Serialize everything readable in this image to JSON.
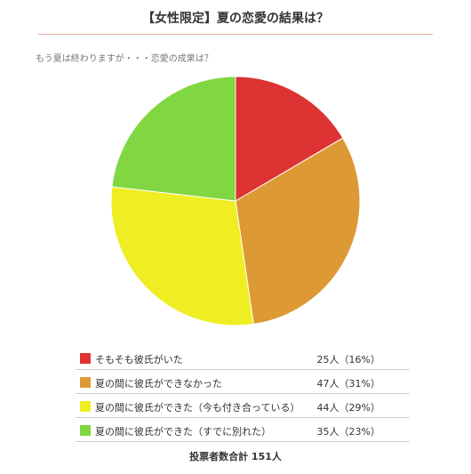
{
  "header": {
    "title": "【女性限定】夏の恋愛の結果は？",
    "question": "もう夏は終わりますが・・・恋愛の成果は？"
  },
  "chart_data": {
    "type": "pie",
    "title": "【女性限定】夏の恋愛の結果は？",
    "categories": [
      "そもそも彼氏がいた",
      "夏の間に彼氏ができなかった",
      "夏の間に彼氏ができた（今も付き合っている）",
      "夏の間に彼氏ができた（すでに別れた）"
    ],
    "values": [
      25,
      47,
      44,
      35
    ],
    "percents": [
      16,
      31,
      29,
      23
    ],
    "colors": [
      "#dd3333",
      "#dd9933",
      "#eeee22",
      "#81d742"
    ],
    "legend_position": "bottom"
  },
  "legend": {
    "items": [
      {
        "label": "そもそも彼氏がいた",
        "value": "25人（16%）",
        "color": "#dd3333"
      },
      {
        "label": "夏の間に彼氏ができなかった",
        "value": "47人（31%）",
        "color": "#dd9933"
      },
      {
        "label": "夏の間に彼氏ができた（今も付き合っている）",
        "value": "44人（29%）",
        "color": "#eeee22"
      },
      {
        "label": "夏の間に彼氏ができた（すでに別れた）",
        "value": "35人（23%）",
        "color": "#81d742"
      }
    ]
  },
  "footer": {
    "total": "投票者数合計 151人"
  }
}
